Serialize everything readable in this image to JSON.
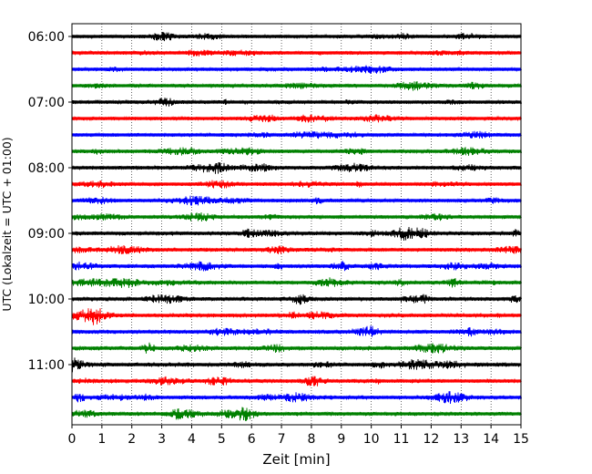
{
  "chart_data": {
    "type": "line",
    "title": "",
    "xlabel": "Zeit  [min]",
    "ylabel": "UTC (Lokalzeit = UTC + 01:00)",
    "xlim": [
      0,
      15
    ],
    "x_ticks": [
      "0",
      "1",
      "2",
      "3",
      "4",
      "5",
      "6",
      "7",
      "8",
      "9",
      "10",
      "11",
      "12",
      "13",
      "14",
      "15"
    ],
    "y_tick_labels": [
      "06:00",
      "07:00",
      "08:00",
      "09:00",
      "10:00",
      "11:00"
    ],
    "grid": "vertical dotted lines at each minute",
    "trace_interval_minutes": 15,
    "trace_color_cycle": [
      "#000000",
      "#ff0000",
      "#0000ff",
      "#008000"
    ],
    "traces": [
      {
        "start": "06:00",
        "color": "#000000",
        "activity": 0.35
      },
      {
        "start": "06:15",
        "color": "#ff0000",
        "activity": 0.35
      },
      {
        "start": "06:30",
        "color": "#0000ff",
        "activity": 0.3
      },
      {
        "start": "06:45",
        "color": "#008000",
        "activity": 0.4
      },
      {
        "start": "07:00",
        "color": "#000000",
        "activity": 0.45
      },
      {
        "start": "07:15",
        "color": "#ff0000",
        "activity": 0.5
      },
      {
        "start": "07:30",
        "color": "#0000ff",
        "activity": 0.55
      },
      {
        "start": "07:45",
        "color": "#008000",
        "activity": 0.6
      },
      {
        "start": "08:00",
        "color": "#000000",
        "activity": 0.65
      },
      {
        "start": "08:15",
        "color": "#ff0000",
        "activity": 0.5
      },
      {
        "start": "08:30",
        "color": "#0000ff",
        "activity": 0.55
      },
      {
        "start": "08:45",
        "color": "#008000",
        "activity": 0.6
      },
      {
        "start": "09:00",
        "color": "#000000",
        "activity": 0.75
      },
      {
        "start": "09:15",
        "color": "#ff0000",
        "activity": 0.6
      },
      {
        "start": "09:30",
        "color": "#0000ff",
        "activity": 0.75
      },
      {
        "start": "09:45",
        "color": "#008000",
        "activity": 0.75
      },
      {
        "start": "10:00",
        "color": "#000000",
        "activity": 0.8
      },
      {
        "start": "10:15",
        "color": "#ff0000",
        "activity": 0.9
      },
      {
        "start": "10:30",
        "color": "#0000ff",
        "activity": 0.8
      },
      {
        "start": "10:45",
        "color": "#008000",
        "activity": 0.9
      },
      {
        "start": "11:00",
        "color": "#000000",
        "activity": 0.95
      },
      {
        "start": "11:15",
        "color": "#ff0000",
        "activity": 0.85
      },
      {
        "start": "11:30",
        "color": "#0000ff",
        "activity": 0.75
      },
      {
        "start": "11:45",
        "color": "#008000",
        "activity": 0.8
      }
    ]
  }
}
